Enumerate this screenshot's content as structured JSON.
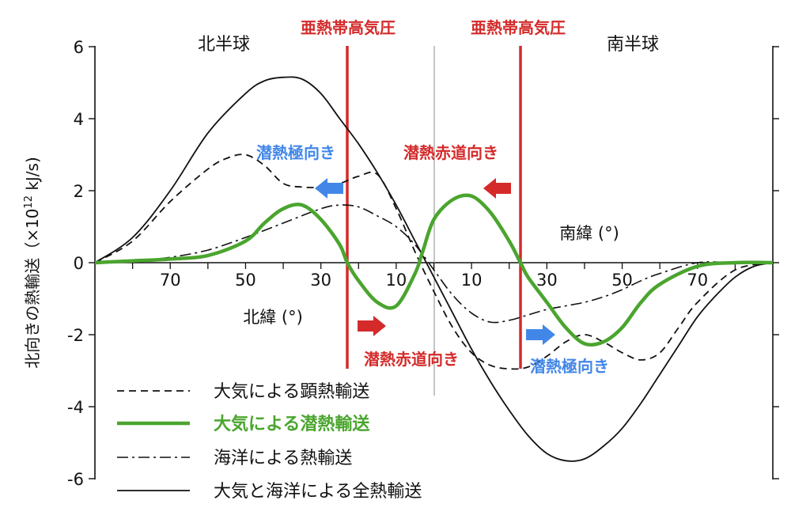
{
  "chart_data": {
    "type": "line",
    "ylabel": "北向きの熱輸送（×10",
    "ylabel_exp": "12",
    "ylabel_unit": " kJ/s)",
    "ylim": [
      -6,
      6
    ],
    "yticks": [
      "6",
      "4",
      "2",
      "0",
      "-2",
      "-4",
      "-6"
    ],
    "xlim": [
      90,
      -90
    ],
    "x_ticks_north": [
      "70",
      "50",
      "30",
      "10"
    ],
    "x_ticks_south": [
      "10",
      "30",
      "50",
      "70"
    ],
    "xlabel_north": "北緯 (°)",
    "xlabel_south": "南緯 (°)",
    "hemisphere_labels": {
      "north": "北半球",
      "south": "南半球"
    },
    "subtropical_high": {
      "label": "亜熱帯高気圧",
      "latitudes": [
        23,
        -23
      ]
    },
    "annotations": {
      "poleward_north": "潜熱極向き",
      "equatorward_north": "潜熱赤道向き",
      "equatorward_south": "潜熱赤道向き",
      "poleward_south": "潜熱極向き"
    },
    "legend": [
      {
        "label": "大気による顕熱輸送",
        "style": "dashed",
        "color": "#111111"
      },
      {
        "label": "大気による潜熱輸送",
        "style": "solid-thick",
        "color": "#4aa52e"
      },
      {
        "label": "海洋による熱輸送",
        "style": "dashdot",
        "color": "#111111"
      },
      {
        "label": "大気と海洋による全熱輸送",
        "style": "solid",
        "color": "#111111"
      }
    ],
    "series": [
      {
        "name": "大気による顕熱輸送",
        "x": [
          90,
          80,
          70,
          60,
          55,
          50,
          45,
          40,
          35,
          30,
          25,
          20,
          15,
          10,
          5,
          0,
          -5,
          -10,
          -15,
          -20,
          -25,
          -30,
          -35,
          -40,
          -45,
          -50,
          -55,
          -60,
          -65,
          -70,
          -80,
          -90
        ],
        "y": [
          0,
          0.6,
          1.7,
          2.6,
          2.9,
          3.0,
          2.7,
          2.2,
          2.1,
          2.1,
          2.2,
          2.4,
          2.45,
          1.5,
          0.3,
          -0.8,
          -1.8,
          -2.5,
          -2.85,
          -2.95,
          -2.9,
          -2.6,
          -2.2,
          -2.0,
          -2.2,
          -2.5,
          -2.7,
          -2.5,
          -1.8,
          -1.1,
          -0.2,
          0
        ]
      },
      {
        "name": "大気による潜熱輸送",
        "x": [
          90,
          80,
          70,
          60,
          50,
          45,
          40,
          35,
          30,
          25,
          23,
          20,
          15,
          10,
          5,
          3,
          0,
          -5,
          -10,
          -15,
          -20,
          -23,
          -25,
          -30,
          -35,
          -40,
          -45,
          -50,
          -55,
          -60,
          -70,
          -80,
          -90
        ],
        "y": [
          0,
          0.05,
          0.1,
          0.2,
          0.6,
          1.1,
          1.5,
          1.6,
          1.2,
          0.5,
          0.0,
          -0.5,
          -1.1,
          -1.2,
          -0.3,
          0.3,
          1.2,
          1.75,
          1.85,
          1.4,
          0.6,
          0.0,
          -0.4,
          -1.1,
          -1.8,
          -2.25,
          -2.2,
          -1.8,
          -1.1,
          -0.6,
          -0.1,
          0,
          0
        ]
      },
      {
        "name": "海洋による熱輸送",
        "x": [
          90,
          80,
          70,
          60,
          50,
          40,
          30,
          25,
          20,
          15,
          10,
          5,
          0,
          -5,
          -10,
          -15,
          -20,
          -25,
          -30,
          -35,
          -40,
          -45,
          -50,
          -55,
          -60,
          -70,
          -80,
          -90
        ],
        "y": [
          0,
          0.05,
          0.15,
          0.35,
          0.7,
          1.1,
          1.5,
          1.6,
          1.55,
          1.3,
          1.0,
          0.5,
          -0.2,
          -0.9,
          -1.4,
          -1.65,
          -1.6,
          -1.45,
          -1.3,
          -1.2,
          -1.1,
          -0.95,
          -0.75,
          -0.5,
          -0.3,
          0,
          0,
          0
        ]
      },
      {
        "name": "大気と海洋による全熱輸送",
        "x": [
          90,
          80,
          70,
          60,
          50,
          45,
          40,
          35,
          30,
          25,
          20,
          15,
          10,
          5,
          0,
          -5,
          -10,
          -15,
          -20,
          -25,
          -30,
          -35,
          -40,
          -45,
          -50,
          -55,
          -60,
          -65,
          -70,
          -75,
          -80,
          -85,
          -90
        ],
        "y": [
          0,
          0.7,
          2.0,
          3.6,
          4.7,
          5.05,
          5.15,
          5.1,
          4.7,
          4.0,
          3.3,
          2.5,
          1.6,
          0.6,
          -0.4,
          -1.4,
          -2.4,
          -3.3,
          -4.1,
          -4.8,
          -5.3,
          -5.5,
          -5.45,
          -5.1,
          -4.6,
          -3.9,
          -3.1,
          -2.3,
          -1.5,
          -0.9,
          -0.4,
          -0.1,
          0
        ]
      }
    ],
    "colors": {
      "red": "#d42a2a",
      "blue": "#4287e8",
      "green": "#4aa52e",
      "black": "#111111"
    }
  }
}
